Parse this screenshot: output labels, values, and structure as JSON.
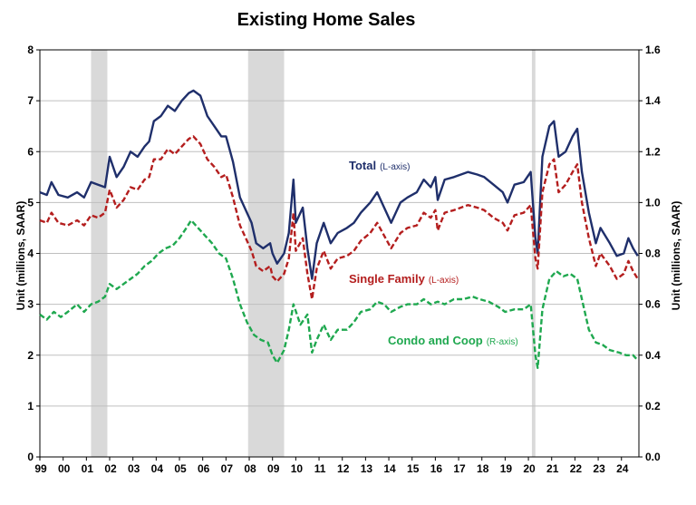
{
  "chart_data": {
    "type": "line",
    "title": "Existing Home Sales",
    "ylabel_left": "Unit (millions, SAAR)",
    "ylabel_right": "Unit (millions, SAAR)",
    "ylim_left": [
      0,
      8
    ],
    "ylim_right": [
      0,
      1.6
    ],
    "yticks_left": [
      "0",
      "1",
      "2",
      "3",
      "4",
      "5",
      "6",
      "7",
      "8"
    ],
    "yticks_right": [
      "0.0",
      "0.2",
      "0.4",
      "0.6",
      "0.8",
      "1.0",
      "1.2",
      "1.4",
      "1.6"
    ],
    "x_tick_labels": [
      "99",
      "00",
      "01",
      "02",
      "03",
      "04",
      "05",
      "06",
      "07",
      "08",
      "09",
      "10",
      "11",
      "12",
      "13",
      "14",
      "15",
      "16",
      "17",
      "18",
      "19",
      "20",
      "21",
      "22",
      "23",
      "24"
    ],
    "x_range": [
      1999.0,
      2024.75
    ],
    "grid": true,
    "recessions": [
      [
        2001.2,
        2001.9
      ],
      [
        2007.95,
        2009.5
      ],
      [
        2020.15,
        2020.3
      ]
    ],
    "series": [
      {
        "name": "Total",
        "axis_note": "(L-axis)",
        "axis": "left",
        "color": "#1f2f6b",
        "dash": "solid",
        "points": [
          [
            1999.0,
            5.2
          ],
          [
            1999.3,
            5.15
          ],
          [
            1999.5,
            5.4
          ],
          [
            1999.8,
            5.15
          ],
          [
            2000.2,
            5.1
          ],
          [
            2000.6,
            5.2
          ],
          [
            2000.9,
            5.1
          ],
          [
            2001.2,
            5.4
          ],
          [
            2001.5,
            5.35
          ],
          [
            2001.8,
            5.3
          ],
          [
            2002.0,
            5.9
          ],
          [
            2002.3,
            5.5
          ],
          [
            2002.6,
            5.7
          ],
          [
            2002.9,
            6.0
          ],
          [
            2003.2,
            5.9
          ],
          [
            2003.5,
            6.1
          ],
          [
            2003.7,
            6.2
          ],
          [
            2003.9,
            6.6
          ],
          [
            2004.2,
            6.7
          ],
          [
            2004.5,
            6.9
          ],
          [
            2004.8,
            6.8
          ],
          [
            2005.1,
            7.0
          ],
          [
            2005.4,
            7.15
          ],
          [
            2005.6,
            7.2
          ],
          [
            2005.9,
            7.1
          ],
          [
            2006.2,
            6.7
          ],
          [
            2006.5,
            6.5
          ],
          [
            2006.8,
            6.3
          ],
          [
            2007.0,
            6.3
          ],
          [
            2007.3,
            5.8
          ],
          [
            2007.6,
            5.1
          ],
          [
            2007.9,
            4.8
          ],
          [
            2008.1,
            4.6
          ],
          [
            2008.3,
            4.2
          ],
          [
            2008.6,
            4.1
          ],
          [
            2008.9,
            4.2
          ],
          [
            2009.0,
            4.0
          ],
          [
            2009.2,
            3.8
          ],
          [
            2009.5,
            4.0
          ],
          [
            2009.7,
            4.4
          ],
          [
            2009.9,
            5.45
          ],
          [
            2010.0,
            4.6
          ],
          [
            2010.3,
            4.9
          ],
          [
            2010.5,
            4.1
          ],
          [
            2010.7,
            3.5
          ],
          [
            2010.9,
            4.2
          ],
          [
            2011.2,
            4.6
          ],
          [
            2011.5,
            4.2
          ],
          [
            2011.8,
            4.4
          ],
          [
            2012.2,
            4.5
          ],
          [
            2012.5,
            4.6
          ],
          [
            2012.8,
            4.8
          ],
          [
            2013.2,
            5.0
          ],
          [
            2013.5,
            5.2
          ],
          [
            2013.8,
            4.9
          ],
          [
            2014.1,
            4.6
          ],
          [
            2014.5,
            5.0
          ],
          [
            2014.8,
            5.1
          ],
          [
            2015.2,
            5.2
          ],
          [
            2015.5,
            5.45
          ],
          [
            2015.8,
            5.3
          ],
          [
            2016.0,
            5.5
          ],
          [
            2016.1,
            5.05
          ],
          [
            2016.4,
            5.45
          ],
          [
            2016.8,
            5.5
          ],
          [
            2017.1,
            5.55
          ],
          [
            2017.4,
            5.6
          ],
          [
            2017.8,
            5.55
          ],
          [
            2018.1,
            5.5
          ],
          [
            2018.5,
            5.35
          ],
          [
            2018.9,
            5.2
          ],
          [
            2019.1,
            5.0
          ],
          [
            2019.4,
            5.35
          ],
          [
            2019.8,
            5.4
          ],
          [
            2020.1,
            5.6
          ],
          [
            2020.3,
            4.3
          ],
          [
            2020.4,
            4.0
          ],
          [
            2020.6,
            5.9
          ],
          [
            2020.9,
            6.5
          ],
          [
            2021.1,
            6.6
          ],
          [
            2021.3,
            5.9
          ],
          [
            2021.6,
            6.0
          ],
          [
            2021.9,
            6.3
          ],
          [
            2022.1,
            6.45
          ],
          [
            2022.3,
            5.6
          ],
          [
            2022.6,
            4.8
          ],
          [
            2022.9,
            4.2
          ],
          [
            2023.1,
            4.5
          ],
          [
            2023.5,
            4.2
          ],
          [
            2023.8,
            3.95
          ],
          [
            2024.1,
            4.0
          ],
          [
            2024.3,
            4.3
          ],
          [
            2024.5,
            4.1
          ],
          [
            2024.7,
            3.95
          ]
        ]
      },
      {
        "name": "Single Family",
        "axis_note": "(L-axis)",
        "axis": "left",
        "color": "#b41e1e",
        "dash": "dashed",
        "points": [
          [
            1999.0,
            4.65
          ],
          [
            1999.3,
            4.6
          ],
          [
            1999.5,
            4.8
          ],
          [
            1999.8,
            4.6
          ],
          [
            2000.2,
            4.55
          ],
          [
            2000.6,
            4.65
          ],
          [
            2000.9,
            4.55
          ],
          [
            2001.2,
            4.75
          ],
          [
            2001.5,
            4.7
          ],
          [
            2001.8,
            4.8
          ],
          [
            2002.0,
            5.25
          ],
          [
            2002.3,
            4.9
          ],
          [
            2002.6,
            5.05
          ],
          [
            2002.9,
            5.3
          ],
          [
            2003.2,
            5.25
          ],
          [
            2003.5,
            5.45
          ],
          [
            2003.7,
            5.5
          ],
          [
            2003.9,
            5.85
          ],
          [
            2004.2,
            5.85
          ],
          [
            2004.5,
            6.05
          ],
          [
            2004.8,
            5.95
          ],
          [
            2005.1,
            6.1
          ],
          [
            2005.4,
            6.25
          ],
          [
            2005.6,
            6.3
          ],
          [
            2005.9,
            6.15
          ],
          [
            2006.2,
            5.85
          ],
          [
            2006.5,
            5.7
          ],
          [
            2006.8,
            5.5
          ],
          [
            2007.0,
            5.55
          ],
          [
            2007.3,
            5.1
          ],
          [
            2007.6,
            4.55
          ],
          [
            2007.9,
            4.25
          ],
          [
            2008.1,
            4.05
          ],
          [
            2008.3,
            3.75
          ],
          [
            2008.6,
            3.65
          ],
          [
            2008.9,
            3.75
          ],
          [
            2009.0,
            3.55
          ],
          [
            2009.2,
            3.45
          ],
          [
            2009.5,
            3.6
          ],
          [
            2009.7,
            3.9
          ],
          [
            2009.9,
            4.8
          ],
          [
            2010.0,
            4.05
          ],
          [
            2010.3,
            4.3
          ],
          [
            2010.5,
            3.6
          ],
          [
            2010.7,
            3.1
          ],
          [
            2010.9,
            3.7
          ],
          [
            2011.2,
            4.05
          ],
          [
            2011.5,
            3.7
          ],
          [
            2011.8,
            3.9
          ],
          [
            2012.2,
            3.95
          ],
          [
            2012.5,
            4.05
          ],
          [
            2012.8,
            4.25
          ],
          [
            2013.2,
            4.4
          ],
          [
            2013.5,
            4.6
          ],
          [
            2013.8,
            4.35
          ],
          [
            2014.1,
            4.1
          ],
          [
            2014.5,
            4.4
          ],
          [
            2014.8,
            4.5
          ],
          [
            2015.2,
            4.55
          ],
          [
            2015.5,
            4.8
          ],
          [
            2015.8,
            4.7
          ],
          [
            2016.0,
            4.85
          ],
          [
            2016.1,
            4.45
          ],
          [
            2016.4,
            4.8
          ],
          [
            2016.8,
            4.85
          ],
          [
            2017.1,
            4.9
          ],
          [
            2017.4,
            4.95
          ],
          [
            2017.8,
            4.9
          ],
          [
            2018.1,
            4.85
          ],
          [
            2018.5,
            4.7
          ],
          [
            2018.9,
            4.6
          ],
          [
            2019.1,
            4.45
          ],
          [
            2019.4,
            4.75
          ],
          [
            2019.8,
            4.8
          ],
          [
            2020.1,
            4.95
          ],
          [
            2020.3,
            3.9
          ],
          [
            2020.4,
            3.7
          ],
          [
            2020.6,
            5.2
          ],
          [
            2020.9,
            5.75
          ],
          [
            2021.1,
            5.85
          ],
          [
            2021.3,
            5.2
          ],
          [
            2021.6,
            5.35
          ],
          [
            2021.9,
            5.6
          ],
          [
            2022.1,
            5.75
          ],
          [
            2022.3,
            5.0
          ],
          [
            2022.6,
            4.3
          ],
          [
            2022.9,
            3.75
          ],
          [
            2023.1,
            4.0
          ],
          [
            2023.5,
            3.75
          ],
          [
            2023.8,
            3.5
          ],
          [
            2024.1,
            3.6
          ],
          [
            2024.3,
            3.85
          ],
          [
            2024.5,
            3.65
          ],
          [
            2024.7,
            3.5
          ]
        ]
      },
      {
        "name": "Condo and Coop",
        "axis_note": "(R-axis)",
        "axis": "right",
        "color": "#1fa84f",
        "dash": "dashed",
        "points": [
          [
            1999.0,
            0.56
          ],
          [
            1999.3,
            0.54
          ],
          [
            1999.6,
            0.57
          ],
          [
            1999.9,
            0.55
          ],
          [
            2000.2,
            0.57
          ],
          [
            2000.6,
            0.6
          ],
          [
            2000.9,
            0.57
          ],
          [
            2001.2,
            0.6
          ],
          [
            2001.5,
            0.61
          ],
          [
            2001.8,
            0.63
          ],
          [
            2002.0,
            0.68
          ],
          [
            2002.3,
            0.66
          ],
          [
            2002.6,
            0.68
          ],
          [
            2002.9,
            0.7
          ],
          [
            2003.2,
            0.72
          ],
          [
            2003.5,
            0.75
          ],
          [
            2003.8,
            0.77
          ],
          [
            2004.1,
            0.8
          ],
          [
            2004.4,
            0.82
          ],
          [
            2004.7,
            0.83
          ],
          [
            2005.0,
            0.86
          ],
          [
            2005.3,
            0.9
          ],
          [
            2005.5,
            0.93
          ],
          [
            2005.8,
            0.9
          ],
          [
            2006.1,
            0.87
          ],
          [
            2006.4,
            0.84
          ],
          [
            2006.7,
            0.8
          ],
          [
            2007.0,
            0.78
          ],
          [
            2007.3,
            0.7
          ],
          [
            2007.6,
            0.6
          ],
          [
            2007.9,
            0.53
          ],
          [
            2008.2,
            0.48
          ],
          [
            2008.5,
            0.46
          ],
          [
            2008.8,
            0.45
          ],
          [
            2009.0,
            0.4
          ],
          [
            2009.2,
            0.37
          ],
          [
            2009.5,
            0.42
          ],
          [
            2009.7,
            0.5
          ],
          [
            2009.9,
            0.6
          ],
          [
            2010.2,
            0.52
          ],
          [
            2010.5,
            0.56
          ],
          [
            2010.7,
            0.41
          ],
          [
            2010.9,
            0.46
          ],
          [
            2011.2,
            0.52
          ],
          [
            2011.5,
            0.46
          ],
          [
            2011.8,
            0.5
          ],
          [
            2012.2,
            0.5
          ],
          [
            2012.5,
            0.53
          ],
          [
            2012.8,
            0.57
          ],
          [
            2013.2,
            0.58
          ],
          [
            2013.5,
            0.61
          ],
          [
            2013.8,
            0.6
          ],
          [
            2014.1,
            0.57
          ],
          [
            2014.5,
            0.59
          ],
          [
            2014.8,
            0.6
          ],
          [
            2015.2,
            0.6
          ],
          [
            2015.5,
            0.62
          ],
          [
            2015.8,
            0.6
          ],
          [
            2016.1,
            0.61
          ],
          [
            2016.4,
            0.6
          ],
          [
            2016.8,
            0.62
          ],
          [
            2017.2,
            0.62
          ],
          [
            2017.6,
            0.63
          ],
          [
            2017.9,
            0.62
          ],
          [
            2018.3,
            0.61
          ],
          [
            2018.7,
            0.59
          ],
          [
            2019.0,
            0.57
          ],
          [
            2019.4,
            0.58
          ],
          [
            2019.8,
            0.58
          ],
          [
            2020.1,
            0.6
          ],
          [
            2020.3,
            0.4
          ],
          [
            2020.4,
            0.35
          ],
          [
            2020.6,
            0.58
          ],
          [
            2020.9,
            0.7
          ],
          [
            2021.2,
            0.73
          ],
          [
            2021.5,
            0.71
          ],
          [
            2021.8,
            0.72
          ],
          [
            2022.1,
            0.7
          ],
          [
            2022.3,
            0.62
          ],
          [
            2022.6,
            0.5
          ],
          [
            2022.9,
            0.45
          ],
          [
            2023.2,
            0.44
          ],
          [
            2023.5,
            0.42
          ],
          [
            2023.9,
            0.41
          ],
          [
            2024.2,
            0.4
          ],
          [
            2024.5,
            0.4
          ],
          [
            2024.7,
            0.38
          ]
        ]
      }
    ]
  }
}
